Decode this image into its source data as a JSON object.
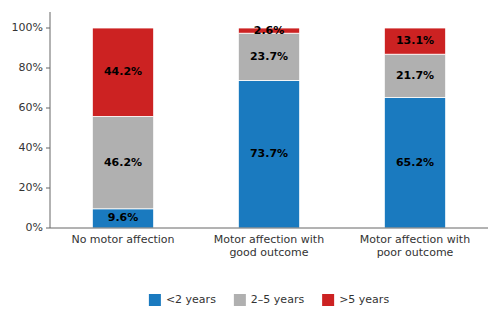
{
  "chart_data": {
    "type": "bar",
    "stacked": true,
    "data_labels": true,
    "legend": "bottom",
    "grid": false,
    "categories": [
      "No motor affection",
      "Motor affection with\ngood outcome",
      "Motor affection with\npoor outcome"
    ],
    "series": [
      {
        "name": "<2 years",
        "color": "#1a7abf",
        "values": [
          9.6,
          73.7,
          65.2
        ],
        "value_labels": [
          "9.6%",
          "73.7%",
          "65.2%"
        ]
      },
      {
        "name": "2–5 years",
        "color": "#b0b0b0",
        "values": [
          46.2,
          23.7,
          21.7
        ],
        "value_labels": [
          "46.2%",
          "23.7%",
          "21.7%"
        ]
      },
      {
        "name": ">5 years",
        "color": "#cc2222",
        "values": [
          44.2,
          2.6,
          13.1
        ],
        "value_labels": [
          "44.2%",
          "2.6%",
          "13.1%"
        ]
      }
    ],
    "ylim": [
      0,
      108
    ],
    "yticks": [
      {
        "value": 0,
        "label": "0%"
      },
      {
        "value": 20,
        "label": "20%"
      },
      {
        "value": 40,
        "label": "40%"
      },
      {
        "value": 60,
        "label": "60%"
      },
      {
        "value": 80,
        "label": "80%"
      },
      {
        "value": 100,
        "label": "100%"
      }
    ]
  }
}
